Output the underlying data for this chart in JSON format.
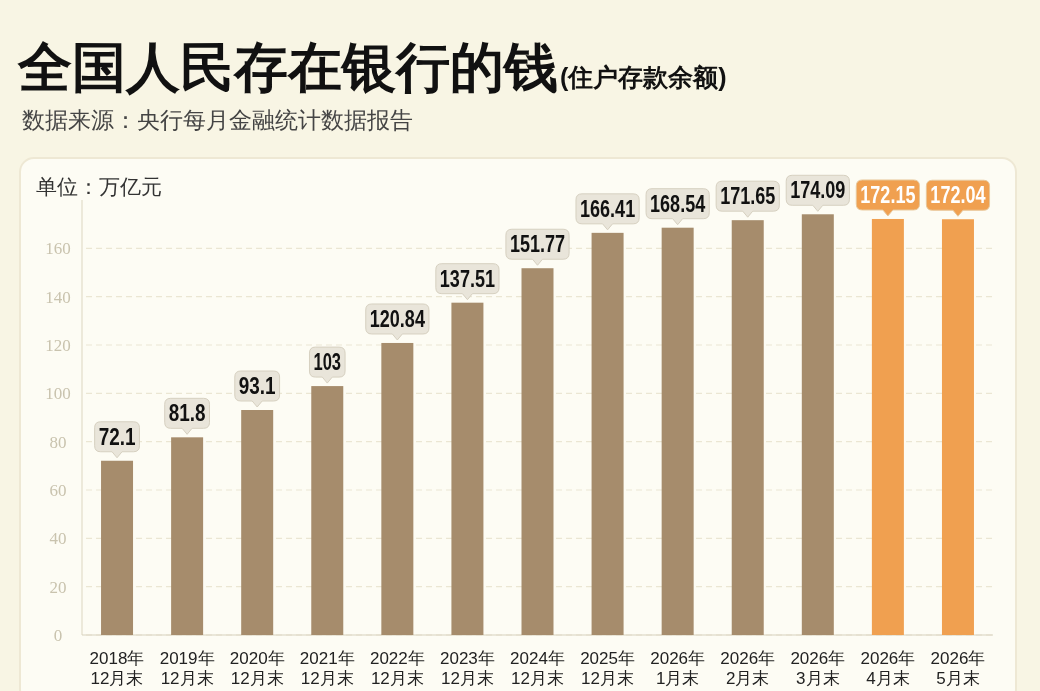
{
  "chart_data": {
    "type": "bar",
    "title": "全国人民存在银行的钱",
    "subtitle": "(住户存款余额)",
    "ylabel": "单位：万亿元",
    "annotations": [
      "数据来源：央行每月金融统计数据报告"
    ],
    "categories": [
      "2018年\n12月末",
      "2019年\n12月末",
      "2020年\n12月末",
      "2021年\n12月末",
      "2022年\n12月末",
      "2023年\n12月末",
      "2024年\n12月末",
      "2025年\n12月末",
      "2026年\n1月末",
      "2026年\n2月末",
      "2026年\n3月末",
      "2026年\n4月末",
      "2026年\n5月末"
    ],
    "values": [
      72.1,
      81.8,
      93.1,
      103,
      120.84,
      137.51,
      151.77,
      166.41,
      168.54,
      171.65,
      174.09,
      172.15,
      172.04
    ],
    "colors": [
      "#a68c6c",
      "#a68c6c",
      "#a68c6c",
      "#a68c6c",
      "#a68c6c",
      "#a68c6c",
      "#a68c6c",
      "#a68c6c",
      "#a68c6c",
      "#a68c6c",
      "#a68c6c",
      "#f0a050",
      "#f0a050"
    ],
    "ylim": [
      0,
      180
    ],
    "yticks": [
      0,
      20,
      40,
      60,
      80,
      100,
      120,
      140,
      160
    ],
    "grid": "y",
    "data_labels": true
  }
}
